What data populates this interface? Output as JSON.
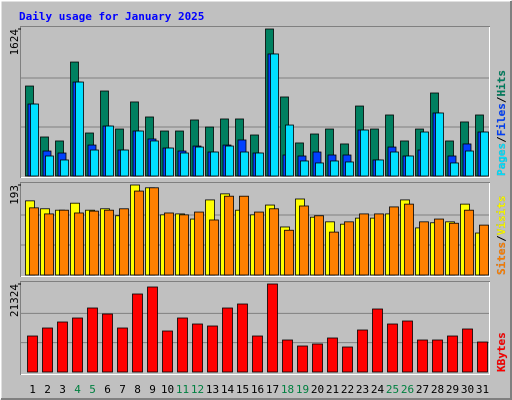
{
  "title": "Daily usage for January 2025",
  "legend_separator": "/",
  "chart_data": [
    {
      "type": "bar",
      "ylim": [
        0,
        1624
      ],
      "yticks": [
        1624
      ],
      "grid": true,
      "series": [
        {
          "name": "Hits",
          "color": "#008060",
          "values": [
            994,
            431,
            387,
            1259,
            475,
            939,
            519,
            818,
            652,
            497,
            497,
            619,
            541,
            630,
            630,
            453,
            1624,
            873,
            365,
            464,
            519,
            354,
            773,
            519,
            674,
            387,
            519,
            917,
            387,
            597,
            674
          ]
        },
        {
          "name": "Files",
          "color": "#0040ff",
          "values": [
            795,
            276,
            254,
            1038,
            342,
            552,
            287,
            497,
            409,
            309,
            276,
            331,
            265,
            342,
            398,
            254,
            1348,
            232,
            221,
            265,
            232,
            232,
            508,
            177,
            320,
            221,
            287,
            696,
            221,
            354,
            486
          ]
        },
        {
          "name": "Pages",
          "color": "#00e0ff",
          "values": [
            795,
            221,
            177,
            1038,
            287,
            552,
            287,
            497,
            387,
            309,
            254,
            320,
            265,
            331,
            265,
            254,
            1348,
            563,
            166,
            144,
            166,
            155,
            508,
            177,
            265,
            221,
            486,
            696,
            144,
            276,
            486
          ]
        }
      ]
    },
    {
      "type": "bar",
      "ylim": [
        0,
        193
      ],
      "yticks": [
        193
      ],
      "grid": true,
      "series": [
        {
          "name": "Visits",
          "color": "#ffff00",
          "values": [
            159,
            142,
            139,
            154,
            139,
            142,
            127,
            193,
            187,
            129,
            131,
            120,
            161,
            174,
            139,
            129,
            150,
            103,
            163,
            124,
            114,
            109,
            122,
            122,
            131,
            161,
            101,
            112,
            114,
            152,
            90
          ]
        },
        {
          "name": "Sites",
          "color": "#ff8000",
          "values": [
            144,
            131,
            139,
            133,
            137,
            139,
            142,
            180,
            187,
            133,
            129,
            135,
            118,
            169,
            169,
            135,
            142,
            96,
            148,
            127,
            92,
            114,
            131,
            131,
            146,
            152,
            114,
            120,
            111,
            139,
            107
          ]
        }
      ]
    },
    {
      "type": "bar",
      "ylim": [
        0,
        21324
      ],
      "yticks": [
        21324
      ],
      "grid": true,
      "categories": [
        "1",
        "2",
        "3",
        "4",
        "5",
        "6",
        "7",
        "8",
        "9",
        "10",
        "11",
        "12",
        "13",
        "14",
        "15",
        "16",
        "17",
        "18",
        "19",
        "20",
        "21",
        "22",
        "23",
        "24",
        "25",
        "26",
        "27",
        "28",
        "29",
        "30",
        "31"
      ],
      "weekend_indices": [
        3,
        4,
        10,
        11,
        17,
        18,
        24,
        25
      ],
      "weekend_color": "#008040",
      "series": [
        {
          "name": "KBytes",
          "color": "#ff0000",
          "values": [
            8723,
            10662,
            12116,
            13085,
            15508,
            14054,
            10662,
            18901,
            20597,
            9935,
            13085,
            11631,
            11147,
            15508,
            16477,
            8723,
            21324,
            7754,
            6300,
            6785,
            8239,
            6058,
            10177,
            15266,
            11631,
            12358,
            7754,
            7754,
            8723,
            10420,
            7269
          ]
        }
      ]
    }
  ]
}
